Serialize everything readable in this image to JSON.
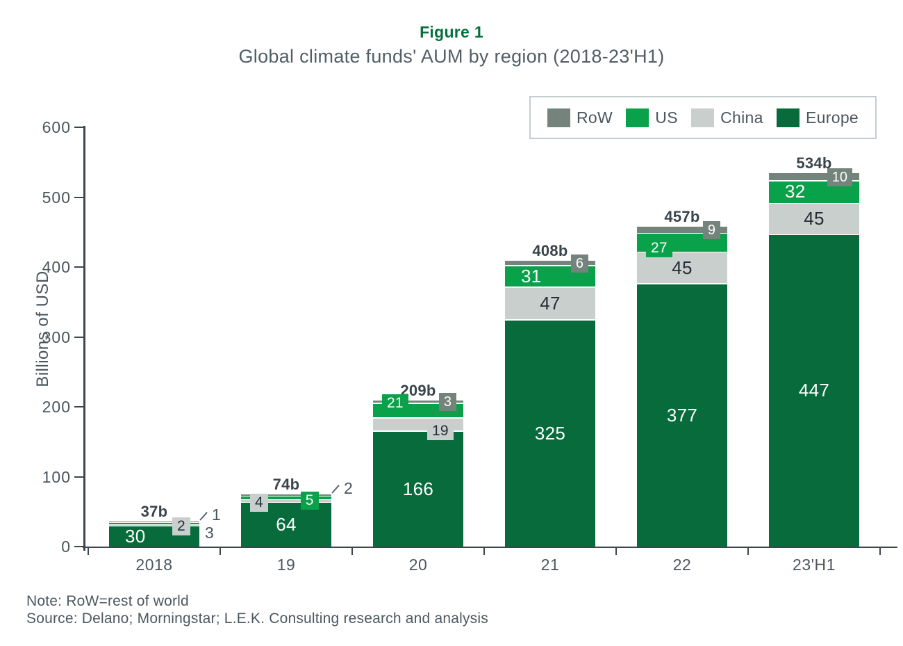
{
  "figure": {
    "label": "Figure 1",
    "title": "Global climate funds' AUM by region (2018-23'H1)"
  },
  "legend": {
    "items": [
      {
        "label": "RoW",
        "key": "row"
      },
      {
        "label": "US",
        "key": "us"
      },
      {
        "label": "China",
        "key": "china"
      },
      {
        "label": "Europe",
        "key": "europe"
      }
    ]
  },
  "colors": {
    "europe": "#076b3c",
    "us": "#0aa14b",
    "china": "#c8cfcd",
    "row": "#74837b",
    "figure_label": "#04703c",
    "axis": "#3c464d",
    "text": "#4b565d",
    "total_text": "#39444b",
    "inside_dark_text": "#242d33",
    "inside_light_text": "#ffffff"
  },
  "chart_data": {
    "type": "bar",
    "stacked": true,
    "title": "Figure 1",
    "subtitle": "Global climate funds' AUM by region (2018-23'H1)",
    "ylabel": "Billions of USD",
    "ylim": [
      0,
      600
    ],
    "yticks": [
      0,
      100,
      200,
      300,
      400,
      500,
      600
    ],
    "grid": false,
    "legend_position": "top-right",
    "legend_order": [
      "RoW",
      "US",
      "China",
      "Europe"
    ],
    "categories": [
      "2018",
      "19",
      "20",
      "21",
      "22",
      "23'H1"
    ],
    "series": [
      {
        "name": "Europe",
        "color": "#076b3c",
        "values": [
          30,
          64,
          166,
          325,
          377,
          447
        ]
      },
      {
        "name": "China",
        "color": "#c8cfcd",
        "values": [
          2,
          4,
          19,
          47,
          45,
          45
        ]
      },
      {
        "name": "US",
        "color": "#0aa14b",
        "values": [
          3,
          5,
          21,
          31,
          27,
          32
        ]
      },
      {
        "name": "RoW",
        "color": "#74837b",
        "values": [
          1,
          2,
          3,
          6,
          9,
          10
        ]
      }
    ],
    "totals": [
      "37b",
      "74b",
      "209b",
      "408b",
      "457b",
      "534b"
    ]
  },
  "label_layout": {
    "bars": [
      {
        "Europe": {
          "mode": "inside",
          "align": "left"
        },
        "China": {
          "mode": "chip",
          "xfrac": 0.7
        },
        "US": {
          "mode": "outside",
          "dy": 14
        },
        "RoW": {
          "mode": "leader",
          "dy": 3
        }
      },
      {
        "Europe": {
          "mode": "inside",
          "align": "center"
        },
        "China": {
          "mode": "chip",
          "xfrac": 0.1
        },
        "US": {
          "mode": "chip",
          "xfrac": 0.66,
          "dy": 5
        },
        "RoW": {
          "mode": "leader",
          "dy": 4
        }
      },
      {
        "Europe": {
          "mode": "inside",
          "align": "center"
        },
        "China": {
          "mode": "chip",
          "xfrac": 0.6
        },
        "US": {
          "mode": "chip",
          "xfrac": 0.1,
          "dy": -10
        },
        "RoW": {
          "mode": "rowchip"
        }
      },
      {
        "Europe": {
          "mode": "inside",
          "align": "center"
        },
        "China": {
          "mode": "inside"
        },
        "US": {
          "mode": "inside",
          "align": "left"
        },
        "RoW": {
          "mode": "rowchip"
        }
      },
      {
        "Europe": {
          "mode": "inside",
          "align": "center"
        },
        "China": {
          "mode": "inside"
        },
        "US": {
          "mode": "chip",
          "xfrac": 0.1,
          "dy": 9
        },
        "RoW": {
          "mode": "rowchip"
        }
      },
      {
        "Europe": {
          "mode": "inside",
          "align": "center"
        },
        "China": {
          "mode": "inside"
        },
        "US": {
          "mode": "inside",
          "align": "left"
        },
        "RoW": {
          "mode": "rowchip"
        }
      }
    ]
  },
  "note": "Note: RoW=rest of world",
  "source": "Source: Delano; Morningstar; L.E.K. Consulting research and analysis"
}
